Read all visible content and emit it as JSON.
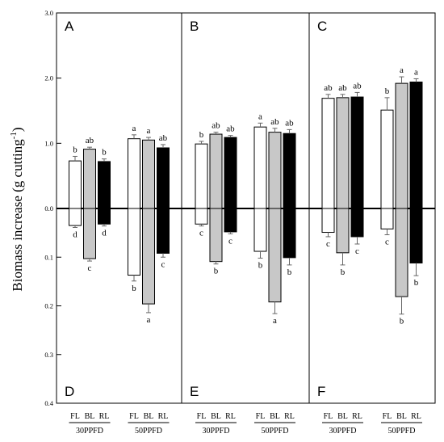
{
  "ylabel_main": "Biomass increase (g cutting",
  "ylabel_sup": "-1",
  "ylabel_close": ")",
  "tick_labels": [
    "3.0",
    "2.0",
    "1.0",
    "0.0",
    "0.1",
    "0.2",
    "0.3",
    "0.4"
  ],
  "chart_data": [
    {
      "type": "bar",
      "panel_top": "A",
      "panel_bottom": "D",
      "groups": [
        "30PPFD",
        "50PPFD"
      ],
      "bar_types": [
        "FL",
        "BL",
        "RL"
      ],
      "colors": [
        "#ffffff",
        "#c8c8c8",
        "#000000"
      ],
      "upper_values": [
        [
          0.73,
          0.91,
          0.72
        ],
        [
          1.07,
          1.05,
          0.93
        ]
      ],
      "upper_errors": [
        [
          0.07,
          0.03,
          0.04
        ],
        [
          0.06,
          0.04,
          0.05
        ]
      ],
      "upper_letters": [
        [
          "b",
          "ab",
          "b"
        ],
        [
          "a",
          "a",
          "ab"
        ]
      ],
      "lower_values": [
        [
          0.035,
          0.103,
          0.032
        ],
        [
          0.137,
          0.196,
          0.092
        ]
      ],
      "lower_errors": [
        [
          0.004,
          0.005,
          0.004
        ],
        [
          0.012,
          0.018,
          0.008
        ]
      ],
      "lower_letters": [
        [
          "d",
          "c",
          "d"
        ],
        [
          "b",
          "a",
          "c"
        ]
      ]
    },
    {
      "type": "bar",
      "panel_top": "B",
      "panel_bottom": "E",
      "groups": [
        "30PPFD",
        "50PPFD"
      ],
      "bar_types": [
        "FL",
        "BL",
        "RL"
      ],
      "colors": [
        "#ffffff",
        "#c8c8c8",
        "#000000"
      ],
      "upper_values": [
        [
          0.99,
          1.14,
          1.09
        ],
        [
          1.25,
          1.17,
          1.15
        ]
      ],
      "upper_errors": [
        [
          0.04,
          0.03,
          0.03
        ],
        [
          0.06,
          0.06,
          0.06
        ]
      ],
      "upper_letters": [
        [
          "b",
          "ab",
          "ab"
        ],
        [
          "a",
          "ab",
          "ab"
        ]
      ],
      "lower_values": [
        [
          0.032,
          0.109,
          0.048
        ],
        [
          0.088,
          0.192,
          0.101
        ]
      ],
      "lower_errors": [
        [
          0.004,
          0.005,
          0.004
        ],
        [
          0.014,
          0.024,
          0.015
        ]
      ],
      "lower_letters": [
        [
          "c",
          "b",
          "c"
        ],
        [
          "b",
          "a",
          "b"
        ]
      ]
    },
    {
      "type": "bar",
      "panel_top": "C",
      "panel_bottom": "F",
      "groups": [
        "30PPFD",
        "50PPFD"
      ],
      "bar_types": [
        "FL",
        "BL",
        "RL"
      ],
      "colors": [
        "#ffffff",
        "#c8c8c8",
        "#000000"
      ],
      "upper_values": [
        [
          1.69,
          1.7,
          1.71
        ],
        [
          1.51,
          1.92,
          1.94
        ]
      ],
      "upper_errors": [
        [
          0.06,
          0.05,
          0.07
        ],
        [
          0.19,
          0.1,
          0.05
        ]
      ],
      "upper_letters": [
        [
          "ab",
          "ab",
          "ab"
        ],
        [
          "b",
          "a",
          "a"
        ]
      ],
      "lower_values": [
        [
          0.049,
          0.091,
          0.058
        ],
        [
          0.042,
          0.181,
          0.112
        ]
      ],
      "lower_errors": [
        [
          0.009,
          0.025,
          0.015
        ],
        [
          0.012,
          0.036,
          0.026
        ]
      ],
      "lower_letters": [
        [
          "c",
          "b",
          "c"
        ],
        [
          "c",
          "b",
          "b"
        ]
      ]
    }
  ]
}
